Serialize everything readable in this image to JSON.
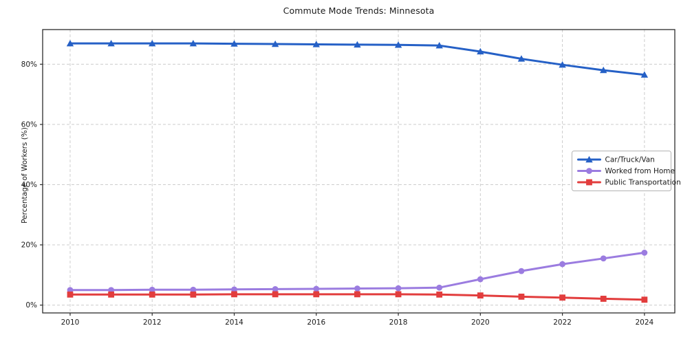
{
  "chart_data": {
    "type": "line",
    "title": "Commute Mode Trends: Minnesota",
    "xlabel": "",
    "ylabel": "Percentage of Workers (%)",
    "x": [
      2010,
      2011,
      2012,
      2013,
      2014,
      2015,
      2016,
      2017,
      2018,
      2019,
      2020,
      2021,
      2022,
      2023,
      2024
    ],
    "series": [
      {
        "name": "Car/Truck/Van",
        "color": "#2560c6",
        "marker": "triangle",
        "values": [
          86.9,
          86.9,
          86.9,
          86.9,
          86.8,
          86.7,
          86.6,
          86.5,
          86.4,
          86.2,
          84.2,
          81.8,
          79.8,
          78.0,
          76.5
        ]
      },
      {
        "name": "Worked from Home",
        "color": "#9b7ce0",
        "marker": "circle",
        "values": [
          5.0,
          5.0,
          5.1,
          5.1,
          5.2,
          5.3,
          5.4,
          5.5,
          5.6,
          5.8,
          8.6,
          11.3,
          13.6,
          15.5,
          17.4
        ]
      },
      {
        "name": "Public Transportation",
        "color": "#e23d3d",
        "marker": "square",
        "values": [
          3.5,
          3.5,
          3.5,
          3.5,
          3.6,
          3.6,
          3.6,
          3.6,
          3.6,
          3.5,
          3.2,
          2.8,
          2.5,
          2.1,
          1.8
        ]
      }
    ],
    "xticks": [
      2010,
      2012,
      2014,
      2016,
      2018,
      2020,
      2022,
      2024
    ],
    "xtick_labels": [
      "2010",
      "2012",
      "2014",
      "2016",
      "2018",
      "2020",
      "2022",
      "2024"
    ],
    "yticks": [
      0,
      20,
      40,
      60,
      80
    ],
    "ytick_labels": [
      "0%",
      "20%",
      "40%",
      "60%",
      "80%"
    ],
    "xlim": [
      2009.33,
      2024.74
    ],
    "ylim": [
      -2.6,
      91.5
    ],
    "grid": true,
    "grid_style": "dashed",
    "legend_position": "center-right"
  },
  "colors": {
    "grid": "#cccccc",
    "spine": "#2b2b2b",
    "tick_text": "#1a1a1a",
    "legend_border": "#b3b3b3",
    "background": "#ffffff"
  }
}
